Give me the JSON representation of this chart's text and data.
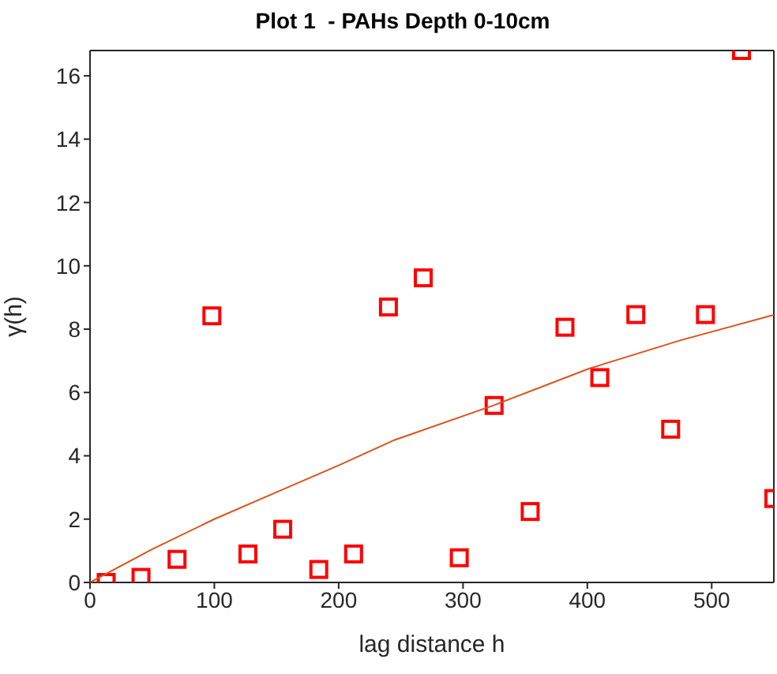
{
  "chart_data": {
    "type": "scatter",
    "title": "Plot 1  - PAHs Depth 0-10cm",
    "xlabel": "lag distance h",
    "ylabel": "γ(h)",
    "xlim": [
      0,
      550
    ],
    "xticks": [
      0,
      100,
      200,
      300,
      400,
      500
    ],
    "ylim": [
      0,
      16.8
    ],
    "yticks": [
      0,
      2,
      4,
      6,
      8,
      10,
      12,
      14,
      16
    ],
    "grid": false,
    "series": [
      {
        "marker": "square",
        "color": "#ff0000",
        "x": [
          13,
          41,
          70,
          98,
          127,
          155,
          184,
          212,
          240,
          268,
          297,
          325,
          354,
          382,
          410,
          439,
          467,
          495,
          524,
          550
        ],
        "values": [
          0.0,
          0.16,
          0.73,
          8.42,
          0.9,
          1.68,
          0.41,
          0.9,
          8.7,
          9.62,
          0.78,
          5.59,
          2.24,
          8.06,
          6.47,
          8.46,
          4.84,
          8.46,
          16.8,
          2.65
        ]
      },
      {
        "type": "line",
        "marker": "none",
        "color": "#d95319",
        "x": [
          0,
          50,
          100,
          150,
          200,
          245,
          325,
          401,
          475,
          550
        ],
        "values": [
          0,
          1.05,
          2.0,
          2.85,
          3.7,
          4.5,
          5.6,
          6.75,
          7.65,
          8.45
        ]
      }
    ]
  }
}
